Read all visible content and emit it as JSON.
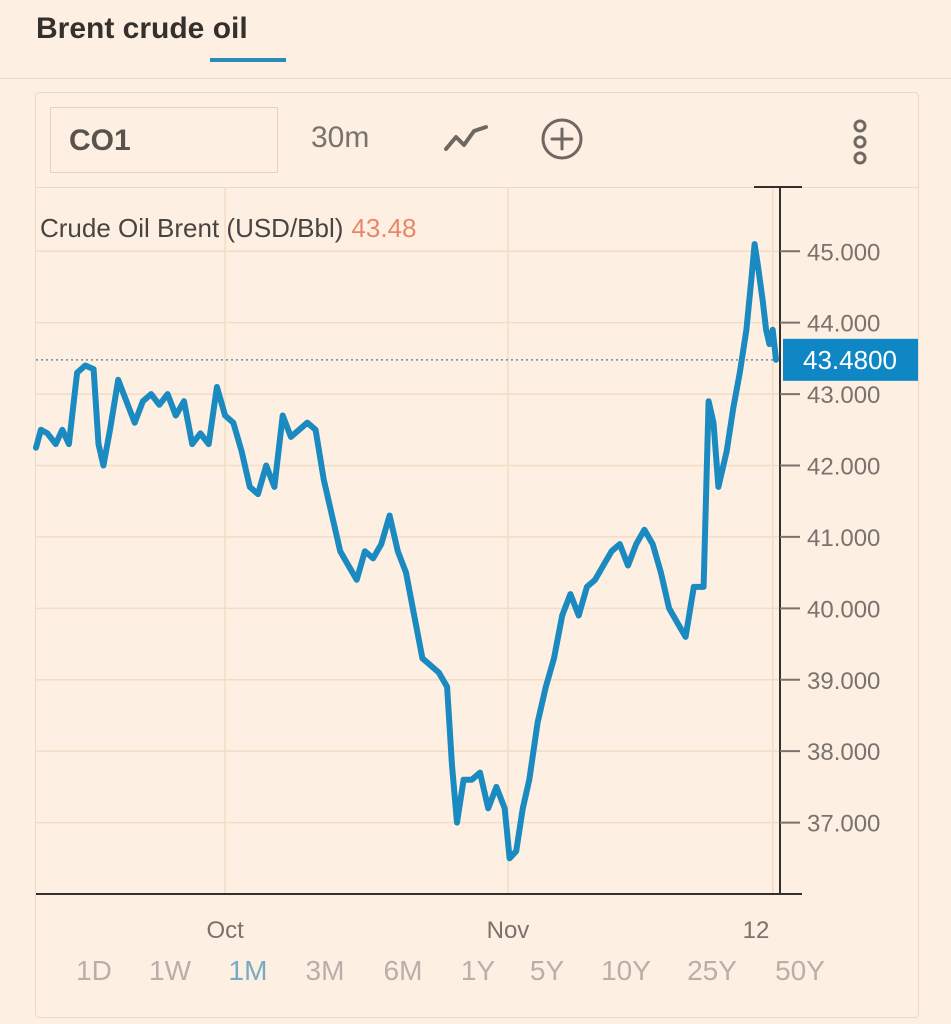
{
  "header": {
    "title": "Brent crude oil"
  },
  "toolbar": {
    "symbol": "CO1",
    "interval": "30m",
    "icons": [
      "line-chart-icon",
      "add-circle-icon",
      "more-vertical-icon"
    ]
  },
  "colors": {
    "background": "#fdf0e2",
    "line": "#1a8ac0",
    "price_badge": "#0f87c4",
    "last_value_text": "#e8876a"
  },
  "ranges": {
    "items": [
      "1D",
      "1W",
      "1M",
      "3M",
      "6M",
      "1Y",
      "5Y",
      "10Y",
      "25Y",
      "50Y"
    ],
    "active": "1M"
  },
  "chart_data": {
    "type": "line",
    "title": "Crude Oil Brent (USD/Bbl)",
    "last_value": "43.48",
    "price_badge": "43.4800",
    "ylim": [
      36.0,
      45.9
    ],
    "yticks": [
      37,
      38,
      39,
      40,
      41,
      42,
      43,
      44,
      45
    ],
    "ytick_labels": [
      "37.000",
      "38.000",
      "39.000",
      "40.000",
      "41.000",
      "42.000",
      "43.000",
      "44.000",
      "45.000"
    ],
    "xlim": [
      0,
      44
    ],
    "xticks": [
      {
        "pos": 11.5,
        "label": "Oct"
      },
      {
        "pos": 28.7,
        "label": "Nov"
      },
      {
        "pos": 44.8,
        "label": "12"
      }
    ],
    "grid": true,
    "series": [
      {
        "values": [
          [
            0,
            42.25
          ],
          [
            0.3,
            42.5
          ],
          [
            0.7,
            42.45
          ],
          [
            1.2,
            42.3
          ],
          [
            1.6,
            42.5
          ],
          [
            2.0,
            42.3
          ],
          [
            2.5,
            43.3
          ],
          [
            3.0,
            43.4
          ],
          [
            3.5,
            43.35
          ],
          [
            3.8,
            42.3
          ],
          [
            4.1,
            42.0
          ],
          [
            4.5,
            42.5
          ],
          [
            5.0,
            43.2
          ],
          [
            5.5,
            42.9
          ],
          [
            6.0,
            42.6
          ],
          [
            6.5,
            42.9
          ],
          [
            7.0,
            43.0
          ],
          [
            7.5,
            42.85
          ],
          [
            8.0,
            43.0
          ],
          [
            8.5,
            42.7
          ],
          [
            9.0,
            42.9
          ],
          [
            9.5,
            42.3
          ],
          [
            10.0,
            42.45
          ],
          [
            10.5,
            42.3
          ],
          [
            11.0,
            43.1
          ],
          [
            11.5,
            42.7
          ],
          [
            12.0,
            42.6
          ],
          [
            12.5,
            42.2
          ],
          [
            13.0,
            41.7
          ],
          [
            13.5,
            41.6
          ],
          [
            14.0,
            42.0
          ],
          [
            14.5,
            41.7
          ],
          [
            15.0,
            42.7
          ],
          [
            15.5,
            42.4
          ],
          [
            16.0,
            42.5
          ],
          [
            16.5,
            42.6
          ],
          [
            17.0,
            42.5
          ],
          [
            17.5,
            41.8
          ],
          [
            18.0,
            41.3
          ],
          [
            18.5,
            40.8
          ],
          [
            19.0,
            40.6
          ],
          [
            19.5,
            40.4
          ],
          [
            20.0,
            40.8
          ],
          [
            20.5,
            40.7
          ],
          [
            21.0,
            40.9
          ],
          [
            21.5,
            41.3
          ],
          [
            22.0,
            40.8
          ],
          [
            22.5,
            40.5
          ],
          [
            23.0,
            39.9
          ],
          [
            23.5,
            39.3
          ],
          [
            24.0,
            39.2
          ],
          [
            24.5,
            39.1
          ],
          [
            25.0,
            38.9
          ],
          [
            25.3,
            37.8
          ],
          [
            25.6,
            37.0
          ],
          [
            26.0,
            37.6
          ],
          [
            26.5,
            37.6
          ],
          [
            27.0,
            37.7
          ],
          [
            27.5,
            37.2
          ],
          [
            28.0,
            37.5
          ],
          [
            28.5,
            37.2
          ],
          [
            28.8,
            36.5
          ],
          [
            29.2,
            36.6
          ],
          [
            29.6,
            37.2
          ],
          [
            30.0,
            37.6
          ],
          [
            30.5,
            38.4
          ],
          [
            31.0,
            38.9
          ],
          [
            31.5,
            39.3
          ],
          [
            32.0,
            39.9
          ],
          [
            32.5,
            40.2
          ],
          [
            33.0,
            39.9
          ],
          [
            33.5,
            40.3
          ],
          [
            34.0,
            40.4
          ],
          [
            34.5,
            40.6
          ],
          [
            35.0,
            40.8
          ],
          [
            35.5,
            40.9
          ],
          [
            36.0,
            40.6
          ],
          [
            36.5,
            40.9
          ],
          [
            37.0,
            41.1
          ],
          [
            37.5,
            40.9
          ],
          [
            38.0,
            40.5
          ],
          [
            38.5,
            40.0
          ],
          [
            39.0,
            39.8
          ],
          [
            39.5,
            39.6
          ],
          [
            40.0,
            40.3
          ],
          [
            40.3,
            40.3
          ],
          [
            40.6,
            40.3
          ],
          [
            40.9,
            42.9
          ],
          [
            41.2,
            42.6
          ],
          [
            41.5,
            41.7
          ],
          [
            42.0,
            42.2
          ],
          [
            42.4,
            42.8
          ],
          [
            42.8,
            43.3
          ],
          [
            43.2,
            43.9
          ],
          [
            43.5,
            44.6
          ],
          [
            43.7,
            45.1
          ],
          [
            43.9,
            44.8
          ],
          [
            44.2,
            44.3
          ],
          [
            44.4,
            43.9
          ],
          [
            44.6,
            43.7
          ],
          [
            44.8,
            43.9
          ],
          [
            45.0,
            43.48
          ]
        ]
      }
    ]
  }
}
